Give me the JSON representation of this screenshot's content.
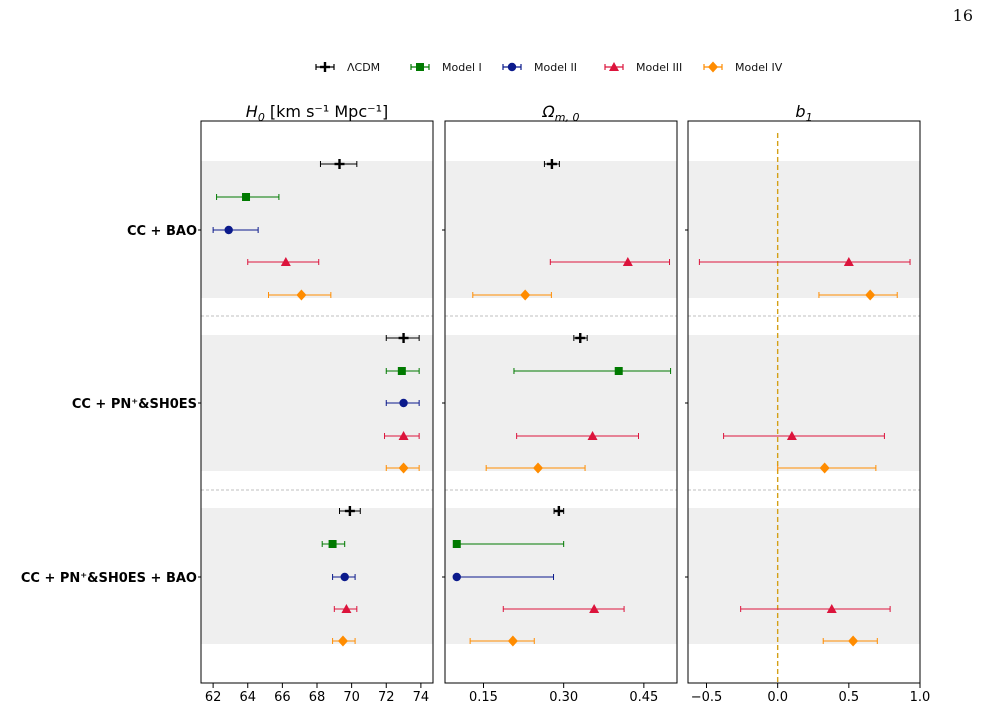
{
  "page_number": "16",
  "chart_data": {
    "type": "scatter",
    "subtype": "forest-plot-with-error-bars",
    "legend": {
      "placement": "top-center",
      "entries": [
        {
          "name": "ΛCDM",
          "color": "#000000",
          "marker": "plus"
        },
        {
          "name": "Model I",
          "color": "#007a00",
          "marker": "square"
        },
        {
          "name": "Model II",
          "color": "#0b1a8c",
          "marker": "circle"
        },
        {
          "name": "Model III",
          "color": "#dc143c",
          "marker": "triangle"
        },
        {
          "name": "Model IV",
          "color": "#ff8c00",
          "marker": "diamond"
        }
      ]
    },
    "groups": [
      "CC + BAO",
      "CC + PN⁺&SH0ES",
      "CC + PN⁺&SH0ES + BAO"
    ],
    "reference_line": {
      "panel": "b1",
      "value": 0.0,
      "color": "#d4a017",
      "style": "dashed"
    },
    "panels": [
      {
        "id": "H0",
        "title_main": "H",
        "title_sub": "0",
        "title_unit": "  [km s⁻¹ Mpc⁻¹]",
        "xlim": [
          61.3,
          74.7
        ],
        "xticks": [
          62,
          64,
          66,
          68,
          70,
          72,
          74
        ],
        "xtick_labels": [
          "62",
          "64",
          "66",
          "68",
          "70",
          "72",
          "74"
        ],
        "series": [
          {
            "name": "ΛCDM",
            "points": [
              {
                "group": "CC + BAO",
                "x": 69.3,
                "lo": 68.2,
                "hi": 70.3
              },
              {
                "group": "CC + PN⁺&SH0ES",
                "x": 73.0,
                "lo": 72.0,
                "hi": 73.9
              },
              {
                "group": "CC + PN⁺&SH0ES + BAO",
                "x": 69.9,
                "lo": 69.3,
                "hi": 70.5
              }
            ]
          },
          {
            "name": "Model I",
            "points": [
              {
                "group": "CC + BAO",
                "x": 63.9,
                "lo": 62.2,
                "hi": 65.8
              },
              {
                "group": "CC + PN⁺&SH0ES",
                "x": 72.9,
                "lo": 72.0,
                "hi": 73.9
              },
              {
                "group": "CC + PN⁺&SH0ES + BAO",
                "x": 68.9,
                "lo": 68.3,
                "hi": 69.6
              }
            ]
          },
          {
            "name": "Model II",
            "points": [
              {
                "group": "CC + BAO",
                "x": 62.9,
                "lo": 62.0,
                "hi": 64.6
              },
              {
                "group": "CC + PN⁺&SH0ES",
                "x": 73.0,
                "lo": 72.0,
                "hi": 73.9
              },
              {
                "group": "CC + PN⁺&SH0ES + BAO",
                "x": 69.6,
                "lo": 68.9,
                "hi": 70.2
              }
            ]
          },
          {
            "name": "Model III",
            "points": [
              {
                "group": "CC + BAO",
                "x": 66.2,
                "lo": 64.0,
                "hi": 68.1
              },
              {
                "group": "CC + PN⁺&SH0ES",
                "x": 73.0,
                "lo": 71.9,
                "hi": 73.9
              },
              {
                "group": "CC + PN⁺&SH0ES + BAO",
                "x": 69.7,
                "lo": 69.0,
                "hi": 70.3
              }
            ]
          },
          {
            "name": "Model IV",
            "points": [
              {
                "group": "CC + BAO",
                "x": 67.1,
                "lo": 65.2,
                "hi": 68.8
              },
              {
                "group": "CC + PN⁺&SH0ES",
                "x": 73.0,
                "lo": 72.0,
                "hi": 73.9
              },
              {
                "group": "CC + PN⁺&SH0ES + BAO",
                "x": 69.5,
                "lo": 68.9,
                "hi": 70.2
              }
            ]
          }
        ]
      },
      {
        "id": "Om",
        "title_main": "Ω",
        "title_sub": "m, 0",
        "title_unit": "",
        "xlim": [
          0.078,
          0.512
        ],
        "xticks": [
          0.15,
          0.3,
          0.45
        ],
        "xtick_labels": [
          "0.15",
          "0.30",
          "0.45"
        ],
        "series": [
          {
            "name": "ΛCDM",
            "points": [
              {
                "group": "CC + BAO",
                "x": 0.278,
                "lo": 0.264,
                "hi": 0.292
              },
              {
                "group": "CC + PN⁺&SH0ES",
                "x": 0.331,
                "lo": 0.319,
                "hi": 0.344
              },
              {
                "group": "CC + PN⁺&SH0ES + BAO",
                "x": 0.291,
                "lo": 0.282,
                "hi": 0.3
              }
            ]
          },
          {
            "name": "Model I",
            "points": [
              {
                "group": "CC + BAO"
              },
              {
                "group": "CC + PN⁺&SH0ES",
                "x": 0.403,
                "lo": 0.207,
                "hi": 0.5
              },
              {
                "group": "CC + PN⁺&SH0ES + BAO",
                "x": 0.1,
                "lo": 0.1,
                "hi": 0.3
              }
            ]
          },
          {
            "name": "Model II",
            "points": [
              {
                "group": "CC + BAO"
              },
              {
                "group": "CC + PN⁺&SH0ES"
              },
              {
                "group": "CC + PN⁺&SH0ES + BAO",
                "x": 0.1,
                "lo": 0.1,
                "hi": 0.281
              }
            ]
          },
          {
            "name": "Model III",
            "points": [
              {
                "group": "CC + BAO",
                "x": 0.42,
                "lo": 0.275,
                "hi": 0.498
              },
              {
                "group": "CC + PN⁺&SH0ES",
                "x": 0.354,
                "lo": 0.212,
                "hi": 0.44
              },
              {
                "group": "CC + PN⁺&SH0ES + BAO",
                "x": 0.357,
                "lo": 0.187,
                "hi": 0.413
              }
            ]
          },
          {
            "name": "Model IV",
            "points": [
              {
                "group": "CC + BAO",
                "x": 0.228,
                "lo": 0.13,
                "hi": 0.277
              },
              {
                "group": "CC + PN⁺&SH0ES",
                "x": 0.252,
                "lo": 0.155,
                "hi": 0.34
              },
              {
                "group": "CC + PN⁺&SH0ES + BAO",
                "x": 0.205,
                "lo": 0.125,
                "hi": 0.245
              }
            ]
          }
        ]
      },
      {
        "id": "b1",
        "title_main": "b",
        "title_sub": "1",
        "title_unit": "",
        "xlim": [
          -0.63,
          1.0
        ],
        "xticks": [
          -0.5,
          0.0,
          0.5,
          1.0
        ],
        "xtick_labels": [
          "−0.5",
          "0.0",
          "0.5",
          "1.0"
        ],
        "series": [
          {
            "name": "ΛCDM",
            "points": [
              {
                "group": "CC + BAO"
              },
              {
                "group": "CC + PN⁺&SH0ES"
              },
              {
                "group": "CC + PN⁺&SH0ES + BAO"
              }
            ]
          },
          {
            "name": "Model I",
            "points": [
              {
                "group": "CC + BAO"
              },
              {
                "group": "CC + PN⁺&SH0ES"
              },
              {
                "group": "CC + PN⁺&SH0ES + BAO"
              }
            ]
          },
          {
            "name": "Model II",
            "points": [
              {
                "group": "CC + BAO"
              },
              {
                "group": "CC + PN⁺&SH0ES"
              },
              {
                "group": "CC + PN⁺&SH0ES + BAO"
              }
            ]
          },
          {
            "name": "Model III",
            "points": [
              {
                "group": "CC + BAO",
                "x": 0.5,
                "lo": -0.55,
                "hi": 0.93
              },
              {
                "group": "CC + PN⁺&SH0ES",
                "x": 0.1,
                "lo": -0.38,
                "hi": 0.75
              },
              {
                "group": "CC + PN⁺&SH0ES + BAO",
                "x": 0.38,
                "lo": -0.26,
                "hi": 0.79
              }
            ]
          },
          {
            "name": "Model IV",
            "points": [
              {
                "group": "CC + BAO",
                "x": 0.65,
                "lo": 0.29,
                "hi": 0.84
              },
              {
                "group": "CC + PN⁺&SH0ES",
                "x": 0.33,
                "lo": 0.0,
                "hi": 0.69
              },
              {
                "group": "CC + PN⁺&SH0ES + BAO",
                "x": 0.53,
                "lo": 0.32,
                "hi": 0.7
              }
            ]
          }
        ]
      }
    ]
  }
}
